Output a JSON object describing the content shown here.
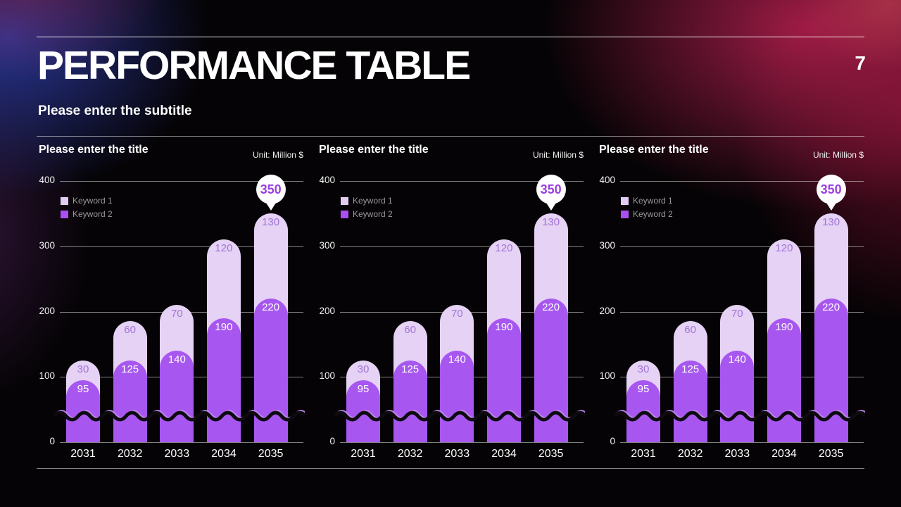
{
  "header": {
    "title": "PERFORMANCE TABLE",
    "subtitle": "Please enter the subtitle",
    "page_number": "7"
  },
  "palette": {
    "background": "#050305",
    "glow_blue": "#2c399e",
    "glow_crimson": "#a31c48",
    "bar_light": "#e5d2f4",
    "bar_dark": "#a757f0",
    "legend_swatch_light": "#e3cdf3",
    "legend_swatch_dark": "#ab4ff2",
    "value_label_on_light": "#a273d8",
    "value_label_on_dark": "#ffffff",
    "callout_bg": "#ffffff",
    "callout_text": "#9b40df",
    "legend_text": "#9a9a9a",
    "gridline": "rgba(235,235,235,0.55)",
    "axis_text": "#f2f2f2",
    "squiggle_black": "#0d0b10",
    "squiggle_purple": "#bd85e8"
  },
  "chart_data": [
    {
      "type": "bar",
      "stacked": true,
      "title": "Please enter the title",
      "unit_label": "Unit: Million $",
      "categories": [
        "2031",
        "2032",
        "2033",
        "2034",
        "2035"
      ],
      "series": [
        {
          "name": "Keyword 1",
          "stack_position": "top",
          "values": [
            30,
            60,
            70,
            120,
            130
          ]
        },
        {
          "name": "Keyword 2",
          "stack_position": "bottom",
          "values": [
            95,
            125,
            140,
            190,
            220
          ]
        }
      ],
      "stack_totals": [
        125,
        185,
        210,
        310,
        350
      ],
      "callout": {
        "category": "2035",
        "value": "350"
      },
      "ylim": [
        0,
        400
      ],
      "yticks": [
        0,
        100,
        200,
        300,
        400
      ],
      "grid": true,
      "legend_position": "upper-left",
      "has_axis_break_squiggle": true
    },
    {
      "type": "bar",
      "stacked": true,
      "title": "Please enter the title",
      "unit_label": "Unit: Million $",
      "categories": [
        "2031",
        "2032",
        "2033",
        "2034",
        "2035"
      ],
      "series": [
        {
          "name": "Keyword 1",
          "stack_position": "top",
          "values": [
            30,
            60,
            70,
            120,
            130
          ]
        },
        {
          "name": "Keyword 2",
          "stack_position": "bottom",
          "values": [
            95,
            125,
            140,
            190,
            220
          ]
        }
      ],
      "stack_totals": [
        125,
        185,
        210,
        310,
        350
      ],
      "callout": {
        "category": "2035",
        "value": "350"
      },
      "ylim": [
        0,
        400
      ],
      "yticks": [
        0,
        100,
        200,
        300,
        400
      ],
      "grid": true,
      "legend_position": "upper-left",
      "has_axis_break_squiggle": true
    },
    {
      "type": "bar",
      "stacked": true,
      "title": "Please enter the title",
      "unit_label": "Unit: Million $",
      "categories": [
        "2031",
        "2032",
        "2033",
        "2034",
        "2035"
      ],
      "series": [
        {
          "name": "Keyword 1",
          "stack_position": "top",
          "values": [
            30,
            60,
            70,
            120,
            130
          ]
        },
        {
          "name": "Keyword 2",
          "stack_position": "bottom",
          "values": [
            95,
            125,
            140,
            190,
            220
          ]
        }
      ],
      "stack_totals": [
        125,
        185,
        210,
        310,
        350
      ],
      "callout": {
        "category": "2035",
        "value": "350"
      },
      "ylim": [
        0,
        400
      ],
      "yticks": [
        0,
        100,
        200,
        300,
        400
      ],
      "grid": true,
      "legend_position": "upper-left",
      "has_axis_break_squiggle": true
    }
  ]
}
